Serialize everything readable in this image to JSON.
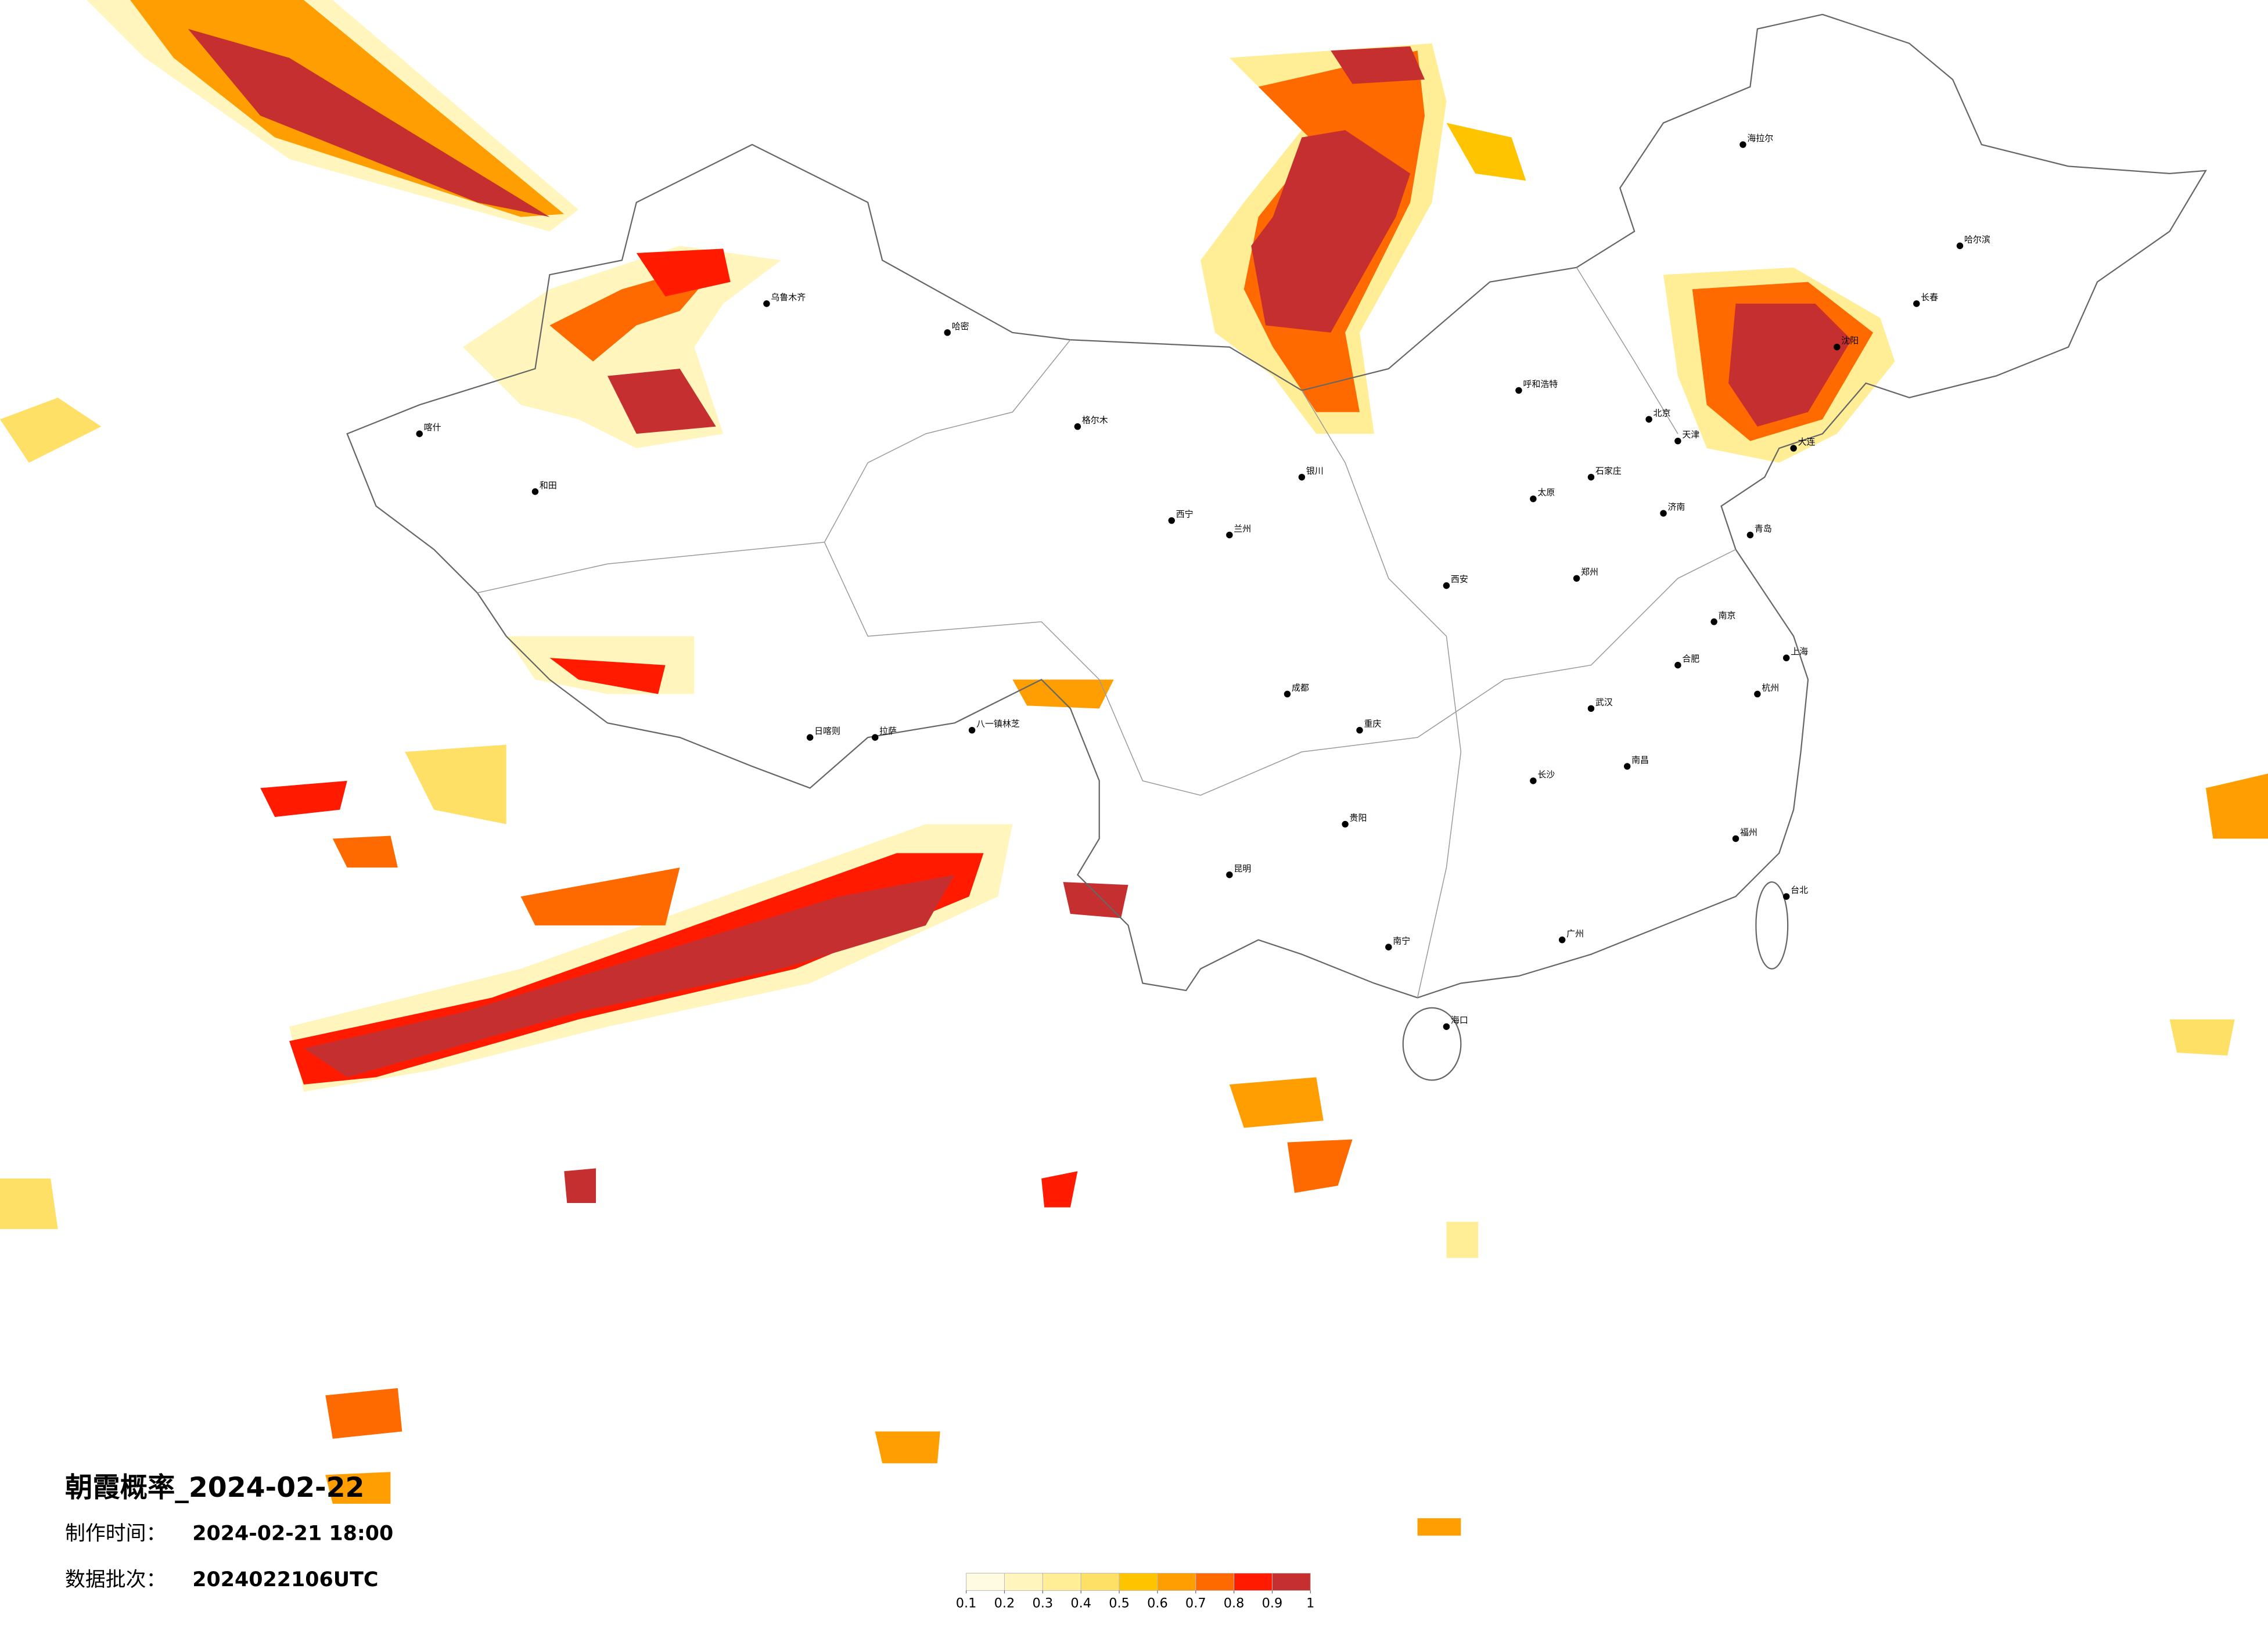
{
  "title": "朝霞概率_2024-02-22",
  "made_label": "制作时间：",
  "made_time": "2024-02-21 18:00",
  "batch_label": "数据批次：",
  "batch": "2024022106UTC",
  "legend": {
    "ticks": [
      0.1,
      0.2,
      0.3,
      0.4,
      0.5,
      0.6,
      0.7,
      0.8,
      0.9,
      1
    ],
    "colors": [
      "#fffbe0",
      "#fff5bd",
      "#ffee95",
      "#ffe066",
      "#ffc400",
      "#ff9e00",
      "#ff6a00",
      "#ff1a00",
      "#c62f2f"
    ]
  },
  "cities": [
    "北京",
    "天津",
    "石家庄",
    "太原",
    "呼和浩特",
    "沈阳",
    "长春",
    "哈尔滨",
    "济南",
    "郑州",
    "西安",
    "兰州",
    "西宁",
    "银川",
    "乌鲁木齐",
    "拉萨",
    "成都",
    "重庆",
    "武汉",
    "南京",
    "上海",
    "杭州",
    "合肥",
    "长沙",
    "南昌",
    "福州",
    "广州",
    "南宁",
    "贵阳",
    "昆明",
    "海口",
    "台北",
    "喀什",
    "和田",
    "哈密",
    "格尔木",
    "日喀则",
    "八一镇林芝",
    "大连",
    "青岛",
    "海拉尔"
  ]
}
